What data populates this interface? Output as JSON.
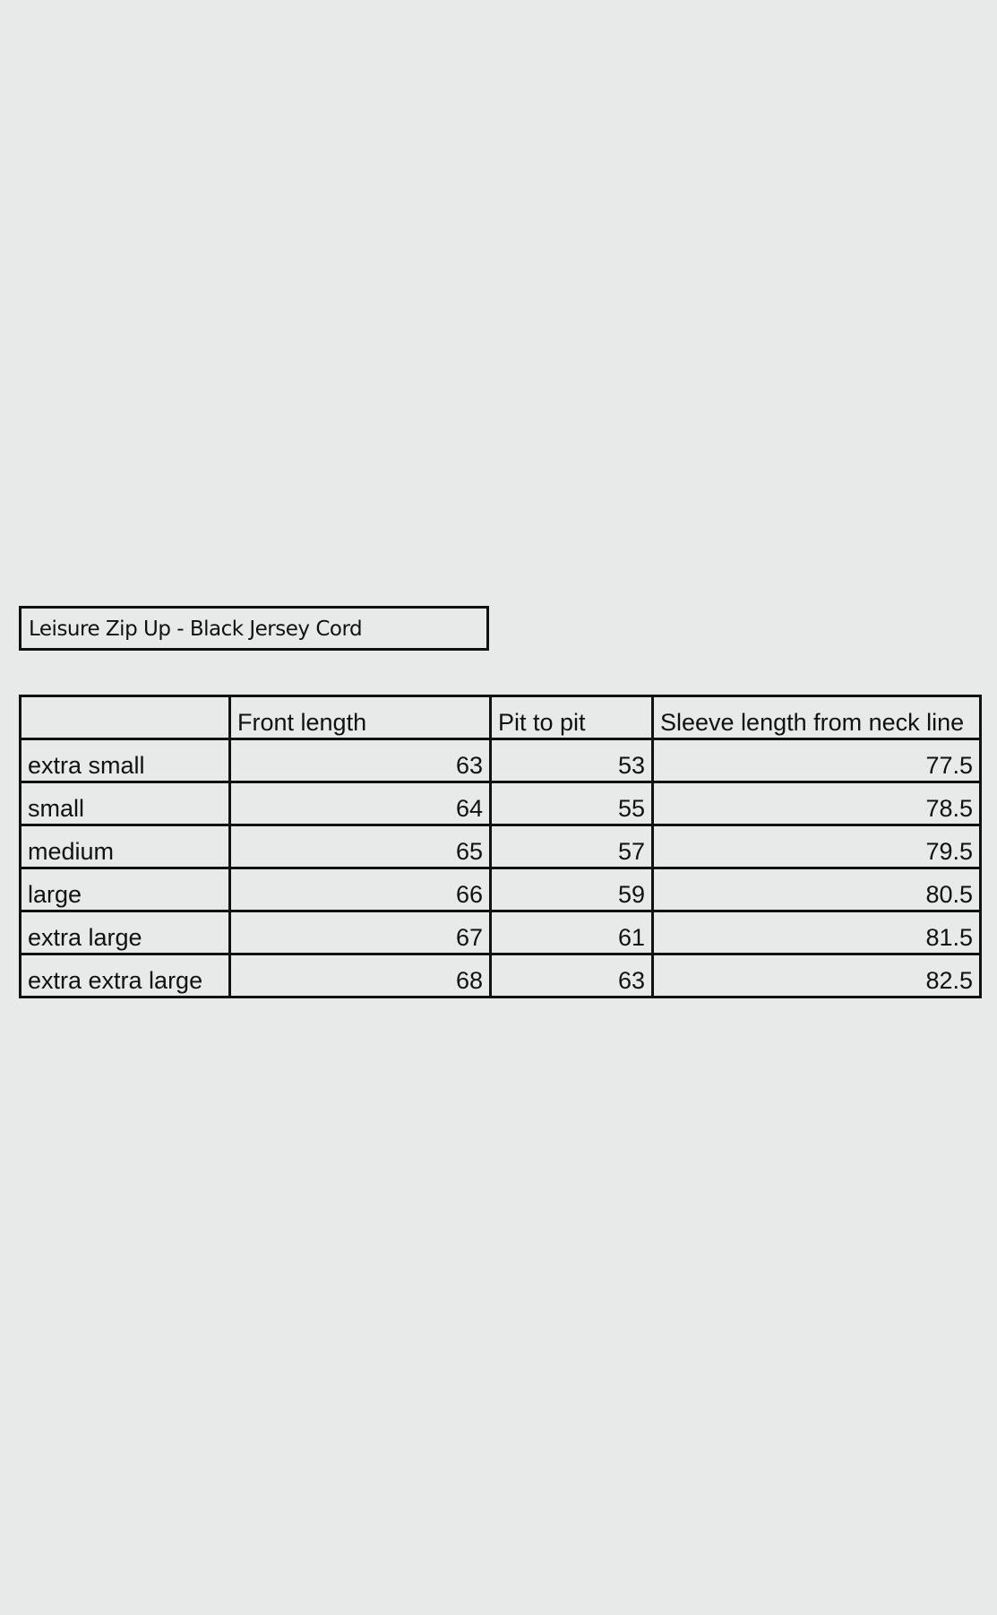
{
  "title": "Leisure Zip Up - Black Jersey Cord",
  "table": {
    "headers": [
      "",
      "Front length",
      "Pit to pit",
      "Sleeve length from neck line"
    ],
    "rows": [
      [
        "extra small",
        "63",
        "53",
        "77.5"
      ],
      [
        "small",
        "64",
        "55",
        "78.5"
      ],
      [
        "medium",
        "65",
        "57",
        "79.5"
      ],
      [
        "large",
        "66",
        "59",
        "80.5"
      ],
      [
        "extra large",
        "67",
        "61",
        "81.5"
      ],
      [
        "extra extra large",
        "68",
        "63",
        "82.5"
      ]
    ]
  }
}
